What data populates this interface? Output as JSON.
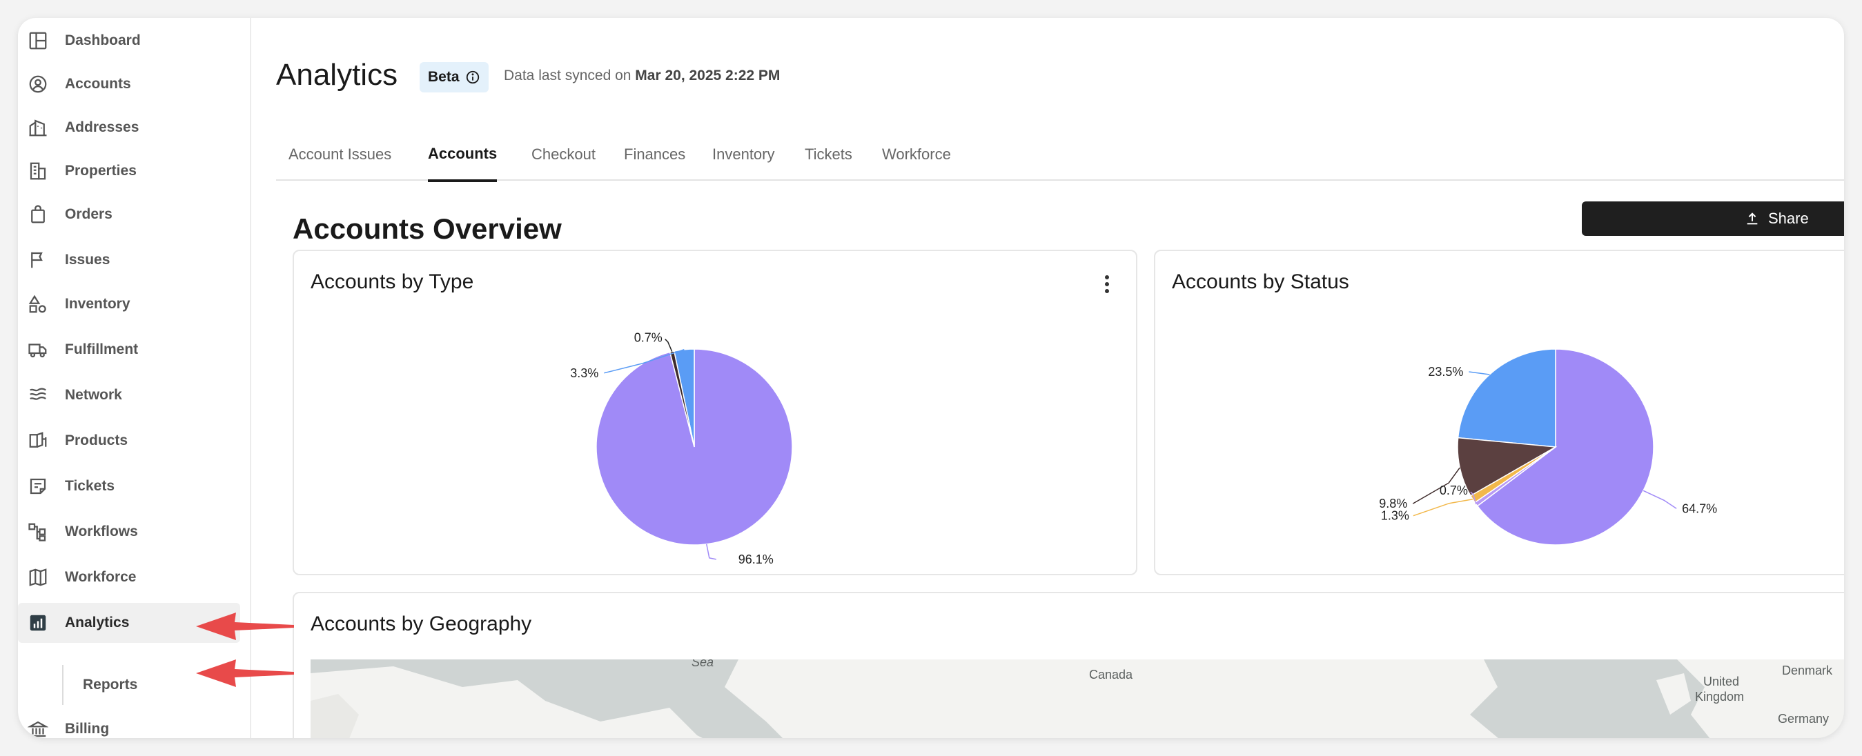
{
  "sidebar": {
    "items": [
      {
        "label": "Dashboard",
        "icon": "layout-icon"
      },
      {
        "label": "Accounts",
        "icon": "user-circle-icon"
      },
      {
        "label": "Addresses",
        "icon": "building-map-icon"
      },
      {
        "label": "Properties",
        "icon": "buildings-icon"
      },
      {
        "label": "Orders",
        "icon": "shopping-bag-icon"
      },
      {
        "label": "Issues",
        "icon": "flag-icon"
      },
      {
        "label": "Inventory",
        "icon": "shapes-icon"
      },
      {
        "label": "Fulfillment",
        "icon": "truck-icon"
      },
      {
        "label": "Network",
        "icon": "waves-icon"
      },
      {
        "label": "Products",
        "icon": "book-open-icon"
      },
      {
        "label": "Tickets",
        "icon": "note-icon"
      },
      {
        "label": "Workflows",
        "icon": "hierarchy-icon"
      },
      {
        "label": "Workforce",
        "icon": "map-fold-icon"
      },
      {
        "label": "Analytics",
        "icon": "chart-bar-icon",
        "active": true
      },
      {
        "label": "Billing",
        "icon": "bank-icon"
      }
    ],
    "sub_item": "Reports"
  },
  "header": {
    "title": "Analytics",
    "badge": "Beta",
    "synced_prefix": "Data last synced on",
    "synced_time": "Mar 20, 2025 2:22 PM"
  },
  "tabs": [
    "Account Issues",
    "Accounts",
    "Checkout",
    "Finances",
    "Inventory",
    "Tickets",
    "Workforce"
  ],
  "active_tab": "Accounts",
  "overview": {
    "title": "Accounts Overview",
    "share_label": "Share"
  },
  "cards": {
    "type_title": "Accounts by Type",
    "status_title": "Accounts by Status",
    "geo_title": "Accounts by Geography"
  },
  "map_labels": {
    "sea": "Sea",
    "canada": "Canada",
    "uk_line1": "United",
    "uk_line2": "Kingdom",
    "denmark": "Denmark",
    "germany": "Germany"
  },
  "chart_data": [
    {
      "type": "pie",
      "title": "Accounts by Type",
      "slices": [
        {
          "value": 96.1,
          "label": "96.1%",
          "color": "#a08af7"
        },
        {
          "value": 3.3,
          "label": "3.3%",
          "color": "#5a9cf5"
        },
        {
          "value": 0.7,
          "label": "0.7%",
          "color": "#3e2b2b"
        }
      ]
    },
    {
      "type": "pie",
      "title": "Accounts by Status",
      "slices": [
        {
          "value": 64.7,
          "label": "64.7%",
          "color": "#a08af7"
        },
        {
          "value": 23.5,
          "label": "23.5%",
          "color": "#5a9cf5"
        },
        {
          "value": 9.8,
          "label": "9.8%",
          "color": "#5b4040"
        },
        {
          "value": 1.3,
          "label": "1.3%",
          "color": "#f2b84b"
        },
        {
          "value": 0.7,
          "label": "0.7%",
          "color": "#b89af5"
        }
      ]
    }
  ],
  "colors": {
    "accent": "#1f1f1f",
    "arrow": "#e84a4a"
  }
}
